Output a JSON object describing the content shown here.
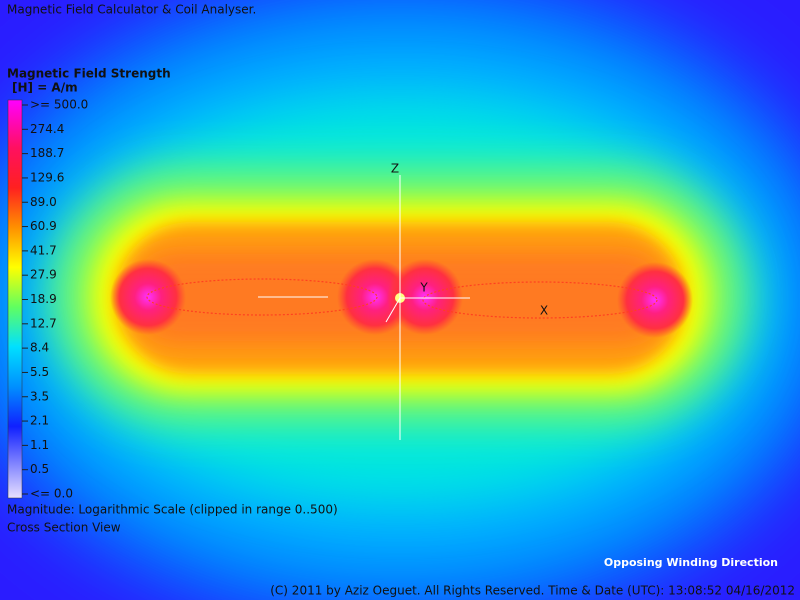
{
  "window": {
    "title": "Magnetic Field Calculator & Coil Analyser."
  },
  "legend": {
    "title": "Magnetic Field Strength",
    "unit": "[H] = A/m",
    "labels": [
      ">= 500.0",
      "274.4",
      "188.7",
      "129.6",
      "89.0",
      "60.9",
      "41.7",
      "27.9",
      "18.9",
      "12.7",
      "8.4",
      "5.5",
      "3.5",
      "2.1",
      "1.1",
      "0.5",
      "<= 0.0"
    ]
  },
  "axes": {
    "z": "Z",
    "y": "Y",
    "x": "X"
  },
  "notes": {
    "scale": "Magnitude: Logarithmic Scale (clipped in range 0..500)",
    "view": "Cross Section View",
    "winding": "Opposing Winding Direction"
  },
  "footer": "(C) 2011 by Aziz Oeguet. All Rights Reserved.  Time & Date (UTC): 13:08:52  04/16/2012"
}
